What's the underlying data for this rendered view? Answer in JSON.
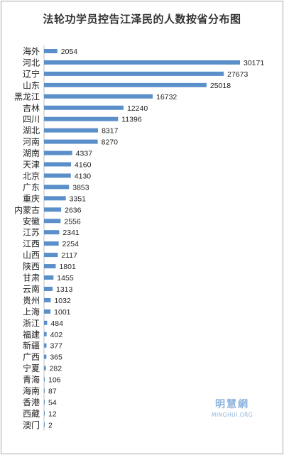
{
  "chart_data": {
    "type": "bar",
    "orientation": "horizontal",
    "title": "法轮功学员控告江泽民的人数按省分布图",
    "categories": [
      "海外",
      "河北",
      "辽宁",
      "山东",
      "黑龙江",
      "吉林",
      "四川",
      "湖北",
      "河南",
      "湖南",
      "天津",
      "北京",
      "广东",
      "重庆",
      "内蒙古",
      "安徽",
      "江苏",
      "江西",
      "山西",
      "陕西",
      "甘肃",
      "云南",
      "贵州",
      "上海",
      "浙江",
      "福建",
      "新疆",
      "广西",
      "宁夏",
      "青海",
      "海南",
      "香港",
      "西藏",
      "澳门"
    ],
    "values": [
      2054,
      30171,
      27673,
      25018,
      16732,
      12240,
      11396,
      8317,
      8270,
      4337,
      4160,
      4130,
      3853,
      3351,
      2636,
      2556,
      2341,
      2254,
      2117,
      1801,
      1455,
      1313,
      1032,
      1001,
      484,
      402,
      377,
      365,
      282,
      106,
      87,
      54,
      12,
      2
    ],
    "xlim": [
      0,
      30171
    ],
    "data_labels": true,
    "grid": false,
    "bar_color": "#5b8fc9"
  },
  "watermark": {
    "cn": "明慧網",
    "en": "MINGHUI.ORG"
  }
}
